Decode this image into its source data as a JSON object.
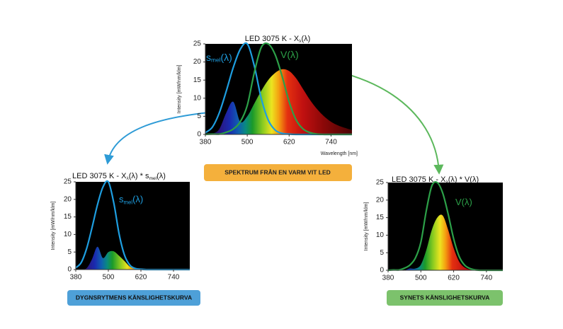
{
  "chart_data": [
    {
      "type": "line",
      "title": [
        {
          "text": "LED 3075 K  - X"
        },
        {
          "text": "λ",
          "sub": true
        },
        {
          "text": "(λ)"
        }
      ],
      "ylabel": "Intensity  [mW/nm/klm]",
      "xlabel": "Wavelength [nm]",
      "x": [
        380,
        400,
        420,
        440,
        460,
        480,
        500,
        520,
        540,
        560,
        580,
        600,
        620,
        640,
        660,
        680,
        700,
        720,
        740,
        760,
        780,
        800
      ],
      "xlim": [
        380,
        800
      ],
      "xticks": [
        380,
        500,
        620,
        740
      ],
      "ylim": [
        0,
        25
      ],
      "yticks": [
        0,
        5,
        10,
        15,
        20,
        25
      ],
      "series": [
        {
          "area": true,
          "values": [
            0,
            0.2,
            1.5,
            6,
            9,
            3.5,
            5,
            8.5,
            12,
            15,
            17,
            18,
            17.5,
            15.5,
            12.5,
            9.5,
            7,
            5,
            3.5,
            2.5,
            1.8,
            1.2
          ]
        },
        {
          "name": [
            {
              "text": "s"
            },
            {
              "text": "mel",
              "sub": true
            },
            {
              "text": "(λ)"
            }
          ],
          "color": "#1e9ee0",
          "values": [
            0.5,
            2,
            6,
            12,
            18.5,
            23.5,
            25,
            19,
            10,
            4,
            1.2,
            0.3,
            0.1,
            0,
            0,
            0,
            0,
            0,
            0,
            0,
            0,
            0
          ]
        },
        {
          "name": [
            {
              "text": "V(λ)"
            }
          ],
          "color": "#2ca048",
          "values": [
            0,
            0.1,
            0.1,
            0.6,
            1.5,
            3.5,
            8,
            17,
            24,
            25,
            22,
            16,
            9,
            4,
            1.5,
            0.5,
            0.1,
            0,
            0,
            0,
            0,
            0
          ]
        }
      ]
    },
    {
      "type": "line",
      "title": [
        {
          "text": "LED 3075 K - X"
        },
        {
          "text": "λ",
          "sub": true
        },
        {
          "text": "(λ) * s"
        },
        {
          "text": "mel",
          "sub": true
        },
        {
          "text": "(λ)"
        }
      ],
      "ylabel": "Intensity  [mW/nm/klm]",
      "x": [
        380,
        400,
        420,
        440,
        460,
        480,
        500,
        520,
        540,
        560,
        580,
        600,
        620,
        640,
        660,
        680,
        700,
        720,
        740,
        760,
        780,
        800
      ],
      "xlim": [
        380,
        800
      ],
      "xticks": [
        380,
        500,
        620,
        740
      ],
      "ylim": [
        0,
        25
      ],
      "yticks": [
        0,
        5,
        10,
        15,
        20,
        25
      ],
      "series": [
        {
          "area": true,
          "values": [
            0,
            0,
            0.4,
            3,
            6.5,
            3.3,
            5,
            5.2,
            3.9,
            2.4,
            0.8,
            0.2,
            0.1,
            0,
            0,
            0,
            0,
            0,
            0,
            0,
            0,
            0
          ]
        },
        {
          "name": [
            {
              "text": "s"
            },
            {
              "text": "mel",
              "sub": true
            },
            {
              "text": "(λ)"
            }
          ],
          "color": "#1e9ee0",
          "values": [
            0.5,
            2,
            6,
            12,
            18.5,
            23.5,
            25,
            19,
            10,
            4,
            1.2,
            0.3,
            0.1,
            0,
            0,
            0,
            0,
            0,
            0,
            0,
            0,
            0
          ]
        }
      ]
    },
    {
      "type": "line",
      "title": [
        {
          "text": "LED 3075 K - X"
        },
        {
          "text": "λ",
          "sub": true
        },
        {
          "text": "(λ) * V(λ)"
        }
      ],
      "ylabel": "Intensity  [mW/nm/klm]",
      "x": [
        380,
        400,
        420,
        440,
        460,
        480,
        500,
        520,
        540,
        560,
        580,
        600,
        620,
        640,
        660,
        680,
        700,
        720,
        740,
        760,
        780,
        800
      ],
      "xlim": [
        380,
        800
      ],
      "xticks": [
        380,
        500,
        620,
        740
      ],
      "ylim": [
        0,
        25
      ],
      "yticks": [
        0,
        5,
        10,
        15,
        20,
        25
      ],
      "series": [
        {
          "area": true,
          "values": [
            0,
            0,
            0,
            0,
            0.5,
            0.5,
            1.6,
            5.8,
            11.5,
            15,
            15.6,
            11.5,
            6.3,
            2.5,
            0.8,
            0.2,
            0,
            0,
            0,
            0,
            0,
            0
          ]
        },
        {
          "name": [
            {
              "text": "V(λ)"
            }
          ],
          "color": "#2ca048",
          "values": [
            0,
            0.1,
            0.1,
            0.6,
            1.5,
            3.5,
            8,
            17,
            24,
            25,
            22,
            16,
            9,
            4,
            1.5,
            0.5,
            0.1,
            0,
            0,
            0,
            0,
            0
          ]
        }
      ]
    }
  ],
  "captions": [
    "SPEKTRUM FRÅN EN VARM VIT LED",
    "DYGNSRYTMENS KÄNSLIGHETSKURVA",
    "SYNETS KÄNSLIGHETSKURVA"
  ]
}
